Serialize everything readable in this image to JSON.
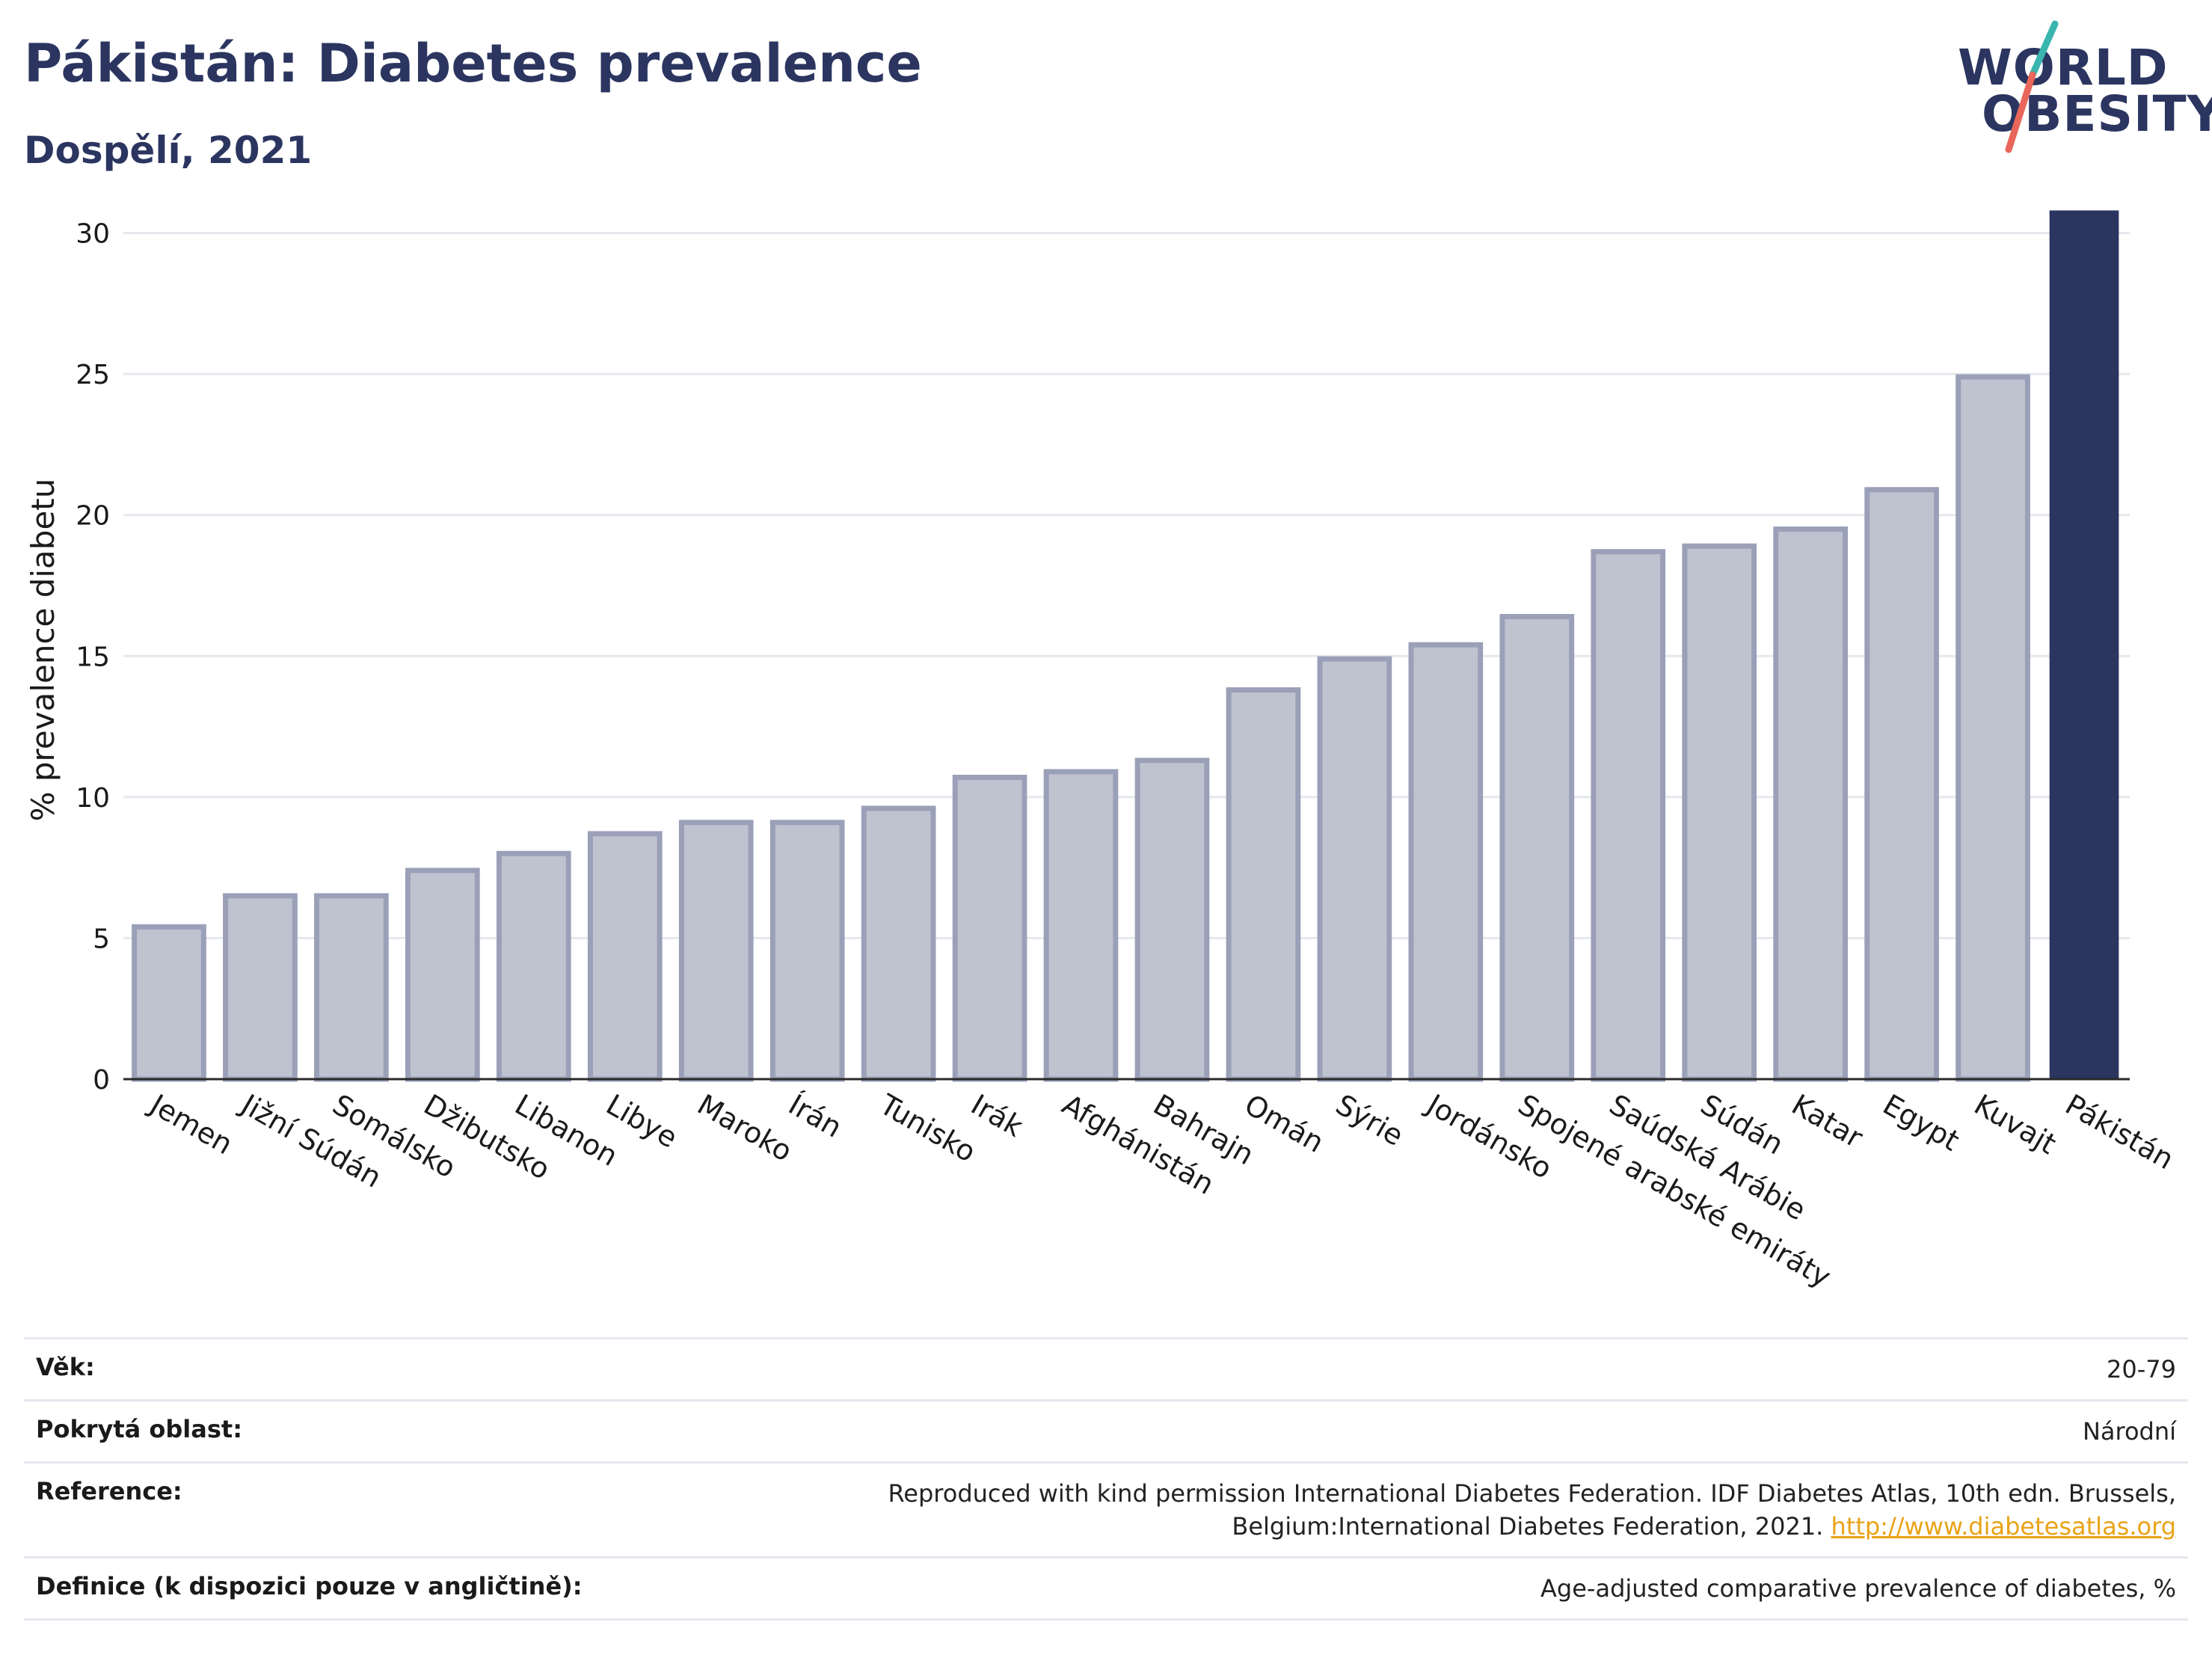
{
  "header": {
    "title": "Pákistán: Diabetes prevalence",
    "subtitle": "Dospělí, 2021"
  },
  "logo": {
    "line1": "WORLD",
    "line2": "OBESITY",
    "slash_colors": [
      "#3ab5b0",
      "#e8675a"
    ]
  },
  "chart_data": {
    "type": "bar",
    "ylabel": "% prevalence diabetu",
    "xlabel": "",
    "ylim": [
      0,
      31.5
    ],
    "yticks": [
      0,
      5,
      10,
      15,
      20,
      25,
      30
    ],
    "grid": true,
    "categories": [
      "Jemen",
      "Jižní Súdán",
      "Somálsko",
      "Džibutsko",
      "Libanon",
      "Libye",
      "Maroko",
      "Írán",
      "Tunisko",
      "Irák",
      "Afghánistán",
      "Bahrajn",
      "Omán",
      "Sýrie",
      "Jordánsko",
      "Spojené arabské emiráty",
      "Saúdská Arábie",
      "Súdán",
      "Katar",
      "Egypt",
      "Kuvajt",
      "Pákistán"
    ],
    "values": [
      5.4,
      6.5,
      6.5,
      7.4,
      8.0,
      8.7,
      9.1,
      9.1,
      9.6,
      10.7,
      10.9,
      11.3,
      13.8,
      14.9,
      15.4,
      16.4,
      18.7,
      18.9,
      19.5,
      20.9,
      24.9,
      30.8
    ],
    "highlight": "Pákistán",
    "colors": {
      "bar_fill": "#bfc3d0",
      "bar_stroke": "#9aa0b8",
      "highlight": "#2b3560",
      "grid": "#e6e8ee",
      "axis": "#2a2a2a"
    }
  },
  "meta": [
    {
      "label": "Věk:",
      "value": "20-79"
    },
    {
      "label": "Pokrytá oblast:",
      "value": "Národní"
    },
    {
      "label": "Reference:",
      "value": "Reproduced with kind permission International Diabetes Federation.  IDF Diabetes Atlas, 10th edn. Brussels, Belgium:International Diabetes Federation, 2021.",
      "link": "http://www.diabetesatlas.org"
    },
    {
      "label": "Definice (k dispozici pouze v angličtině):",
      "value": "Age-adjusted comparative prevalence of diabetes, %"
    }
  ]
}
